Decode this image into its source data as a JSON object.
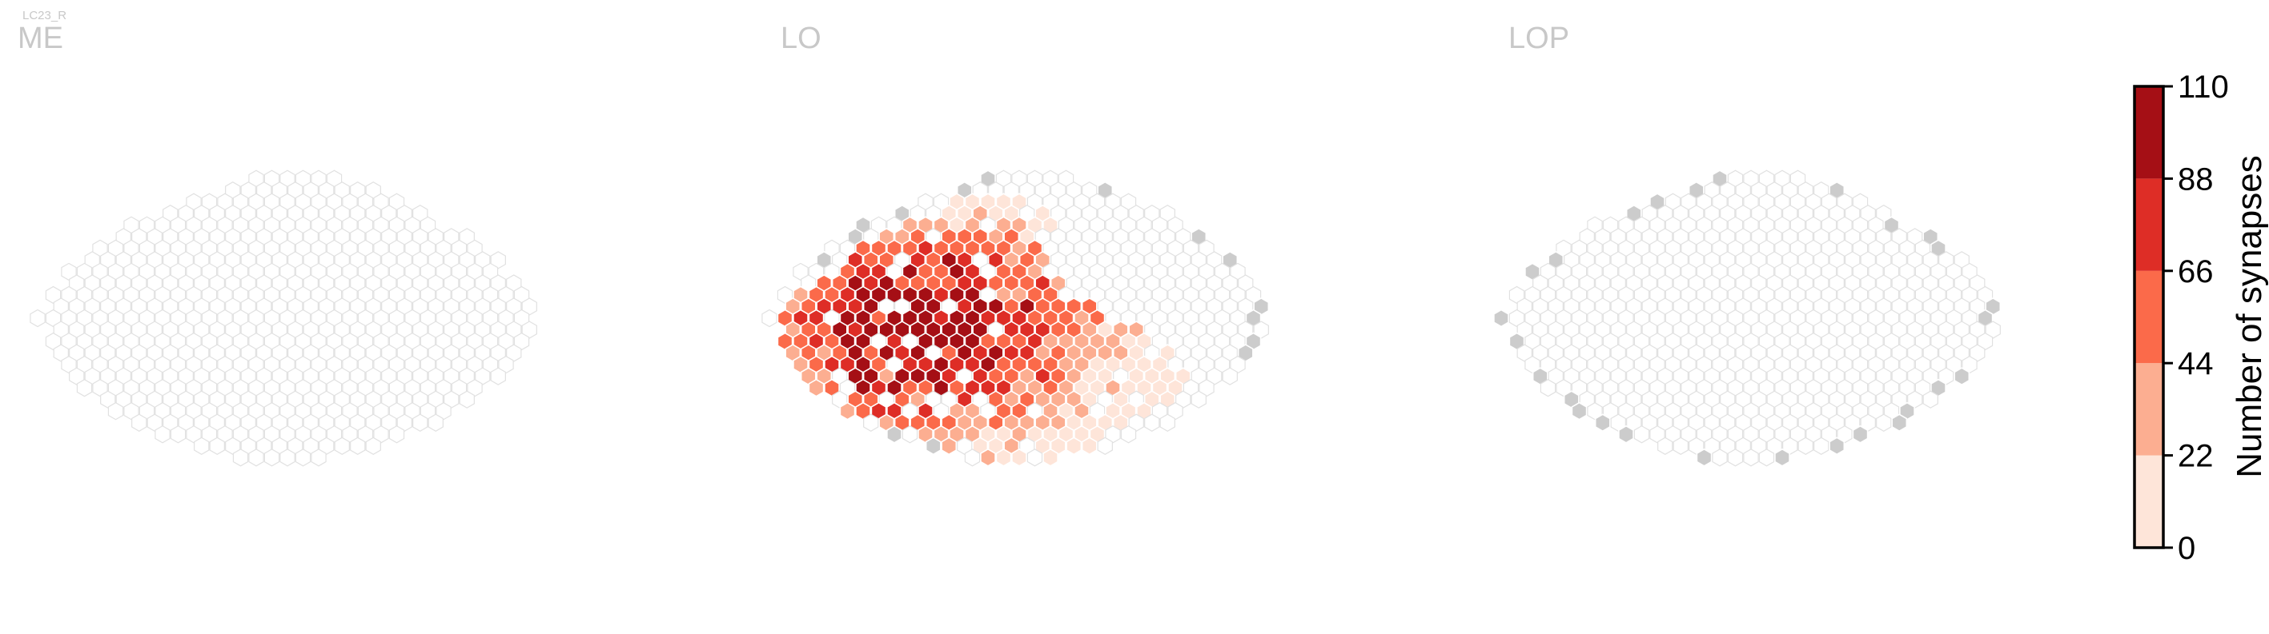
{
  "figure": {
    "supertitle": "LC23_R"
  },
  "chart_data": {
    "type": "heatmap",
    "grid": "hexagonal",
    "panels": [
      {
        "title": "ME",
        "occupied_columns": "none",
        "rows": [
          {
            "y": 12,
            "x_min": -4,
            "x_max": 1
          },
          {
            "y": 11,
            "x_min": -6,
            "x_max": 3
          },
          {
            "y": 10,
            "x_min": -8,
            "x_max": 5
          },
          {
            "y": 9,
            "x_min": -10,
            "x_max": 6
          },
          {
            "y": 8,
            "x_min": -12,
            "x_max": 7
          },
          {
            "y": 7,
            "x_min": -13,
            "x_max": 9
          },
          {
            "y": 6,
            "x_min": -14,
            "x_max": 10
          },
          {
            "y": 5,
            "x_min": -15,
            "x_max": 11
          },
          {
            "y": 4,
            "x_min": -16,
            "x_max": 11
          },
          {
            "y": 3,
            "x_min": -16,
            "x_max": 12
          },
          {
            "y": 2,
            "x_min": -17,
            "x_max": 13
          },
          {
            "y": 1,
            "x_min": -17,
            "x_max": 13
          },
          {
            "y": 0,
            "x_min": -18,
            "x_max": 13
          },
          {
            "y": -1,
            "x_min": -17,
            "x_max": 13
          },
          {
            "y": -2,
            "x_min": -17,
            "x_max": 13
          },
          {
            "y": -3,
            "x_min": -17,
            "x_max": 12
          },
          {
            "y": -4,
            "x_min": -16,
            "x_max": 12
          },
          {
            "y": -5,
            "x_min": -16,
            "x_max": 11
          },
          {
            "y": -6,
            "x_min": -15,
            "x_max": 10
          },
          {
            "y": -7,
            "x_min": -14,
            "x_max": 9
          },
          {
            "y": -8,
            "x_min": -13,
            "x_max": 8
          },
          {
            "y": -9,
            "x_min": -12,
            "x_max": 7
          },
          {
            "y": -10,
            "x_min": -10,
            "x_max": 5
          },
          {
            "y": -11,
            "x_min": -8,
            "x_max": 3
          },
          {
            "y": -12,
            "x_min": -5,
            "x_max": 0
          }
        ],
        "occupied_bands": []
      },
      {
        "title": "LO",
        "occupied_columns": "synapse counts",
        "rows": [
          {
            "y": 12,
            "x_min": -4,
            "x_max": 1
          },
          {
            "y": 11,
            "x_min": -6,
            "x_max": 3
          },
          {
            "y": 10,
            "x_min": -8,
            "x_max": 5
          },
          {
            "y": 9,
            "x_min": -10,
            "x_max": 7
          },
          {
            "y": 8,
            "x_min": -12,
            "x_max": 8
          },
          {
            "y": 7,
            "x_min": -13,
            "x_max": 9
          },
          {
            "y": 6,
            "x_min": -14,
            "x_max": 10
          },
          {
            "y": 5,
            "x_min": -15,
            "x_max": 11
          },
          {
            "y": 4,
            "x_min": -16,
            "x_max": 12
          },
          {
            "y": 3,
            "x_min": -16,
            "x_max": 12
          },
          {
            "y": 2,
            "x_min": -17,
            "x_max": 13
          },
          {
            "y": 1,
            "x_min": -17,
            "x_max": 13
          },
          {
            "y": 0,
            "x_min": -18,
            "x_max": 13
          },
          {
            "y": -1,
            "x_min": -17,
            "x_max": 13
          },
          {
            "y": -2,
            "x_min": -17,
            "x_max": 13
          },
          {
            "y": -3,
            "x_min": -17,
            "x_max": 12
          },
          {
            "y": -4,
            "x_min": -16,
            "x_max": 12
          },
          {
            "y": -5,
            "x_min": -16,
            "x_max": 11
          },
          {
            "y": -6,
            "x_min": -15,
            "x_max": 10
          },
          {
            "y": -7,
            "x_min": -14,
            "x_max": 9
          },
          {
            "y": -8,
            "x_min": -13,
            "x_max": 8
          },
          {
            "y": -9,
            "x_min": -12,
            "x_max": 7
          },
          {
            "y": -10,
            "x_min": -10,
            "x_max": 5
          },
          {
            "y": -11,
            "x_min": -8,
            "x_max": 3
          },
          {
            "y": -12,
            "x_min": -5,
            "x_max": 0
          }
        ],
        "occupied_bands": [
          {
            "y": 10,
            "x_min": -6,
            "x_max": -2
          },
          {
            "y": 9,
            "x_min": -7,
            "x_max": -1
          },
          {
            "y": 8,
            "x_min": -9,
            "x_max": 0
          },
          {
            "y": 7,
            "x_min": -11,
            "x_max": 0
          },
          {
            "y": 6,
            "x_min": -12,
            "x_max": -1
          },
          {
            "y": 5,
            "x_min": -13,
            "x_max": -1
          },
          {
            "y": 4,
            "x_min": -14,
            "x_max": -1
          },
          {
            "y": 3,
            "x_min": -15,
            "x_max": 0
          },
          {
            "y": 2,
            "x_min": -16,
            "x_max": 1
          },
          {
            "y": 1,
            "x_min": -17,
            "x_max": 2
          },
          {
            "y": 0,
            "x_min": -17,
            "x_max": 3
          },
          {
            "y": -1,
            "x_min": -17,
            "x_max": 5
          },
          {
            "y": -2,
            "x_min": -17,
            "x_max": 6
          },
          {
            "y": -3,
            "x_min": -17,
            "x_max": 7
          },
          {
            "y": -4,
            "x_min": -16,
            "x_max": 7
          },
          {
            "y": -5,
            "x_min": -16,
            "x_max": 8
          },
          {
            "y": -6,
            "x_min": -15,
            "x_max": 8
          },
          {
            "y": -7,
            "x_min": -14,
            "x_max": 7
          },
          {
            "y": -8,
            "x_min": -13,
            "x_max": 6
          },
          {
            "y": -9,
            "x_min": -11,
            "x_max": 5
          },
          {
            "y": -10,
            "x_min": -9,
            "x_max": 4
          },
          {
            "y": -11,
            "x_min": -7,
            "x_max": 2
          },
          {
            "y": -12,
            "x_min": -4,
            "x_max": 0
          }
        ],
        "hotspot": {
          "x": -8,
          "y": -1,
          "peak": 108,
          "spread": 7.0
        },
        "value_range": [
          1,
          110
        ]
      },
      {
        "title": "LOP",
        "occupied_columns": "none",
        "rows": [
          {
            "y": 12,
            "x_min": -4,
            "x_max": 1
          },
          {
            "y": 11,
            "x_min": -6,
            "x_max": 3
          },
          {
            "y": 10,
            "x_min": -8,
            "x_max": 5
          },
          {
            "y": 9,
            "x_min": -10,
            "x_max": 6
          },
          {
            "y": 8,
            "x_min": -12,
            "x_max": 7
          },
          {
            "y": 7,
            "x_min": -13,
            "x_max": 9
          },
          {
            "y": 6,
            "x_min": -14,
            "x_max": 10
          },
          {
            "y": 5,
            "x_min": -15,
            "x_max": 11
          },
          {
            "y": 4,
            "x_min": -16,
            "x_max": 12
          },
          {
            "y": 3,
            "x_min": -16,
            "x_max": 12
          },
          {
            "y": 2,
            "x_min": -17,
            "x_max": 13
          },
          {
            "y": 1,
            "x_min": -17,
            "x_max": 13
          },
          {
            "y": 0,
            "x_min": -18,
            "x_max": 13
          },
          {
            "y": -1,
            "x_min": -17,
            "x_max": 13
          },
          {
            "y": -2,
            "x_min": -17,
            "x_max": 13
          },
          {
            "y": -3,
            "x_min": -17,
            "x_max": 12
          },
          {
            "y": -4,
            "x_min": -16,
            "x_max": 12
          },
          {
            "y": -5,
            "x_min": -16,
            "x_max": 11
          },
          {
            "y": -6,
            "x_min": -15,
            "x_max": 10
          },
          {
            "y": -7,
            "x_min": -14,
            "x_max": 9
          },
          {
            "y": -8,
            "x_min": -13,
            "x_max": 8
          },
          {
            "y": -9,
            "x_min": -12,
            "x_max": 7
          },
          {
            "y": -10,
            "x_min": -10,
            "x_max": 5
          },
          {
            "y": -11,
            "x_min": -8,
            "x_max": 3
          },
          {
            "y": -12,
            "x_min": -5,
            "x_max": 0
          }
        ],
        "occupied_bands": []
      }
    ],
    "colorbar": {
      "label": "Number of synapses",
      "ticks": [
        0,
        22,
        44,
        66,
        88,
        110
      ],
      "tick_labels": [
        "0",
        "22",
        "44",
        "66",
        "88",
        "110"
      ],
      "bins": [
        {
          "from": 0,
          "to": 22,
          "color": "#fee5d9"
        },
        {
          "from": 22,
          "to": 44,
          "color": "#fcae91"
        },
        {
          "from": 44,
          "to": 66,
          "color": "#fb6a4a"
        },
        {
          "from": 66,
          "to": 88,
          "color": "#de2d26"
        },
        {
          "from": 88,
          "to": 110,
          "color": "#a50f15"
        }
      ],
      "vmin": 0,
      "vmax": 110
    }
  },
  "colors": {
    "empty_column_fill": "#ffffff",
    "empty_column_edge": "#e1e1e1",
    "edge_column_fill": "#cccccc",
    "occupied_edge": "#ffffff",
    "title": "#c8c8c8",
    "text": "#000000"
  }
}
